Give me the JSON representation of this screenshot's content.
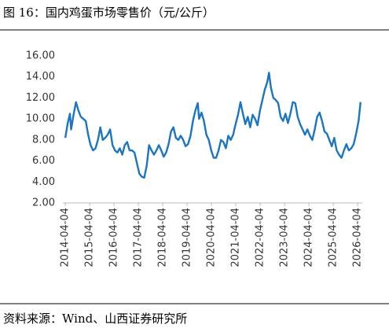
{
  "chart_data": {
    "type": "line",
    "title": "图 16：国内鸡蛋市场零售价（元/公斤）",
    "source": "资料来源：Wind、山西证券研究所",
    "series": [
      {
        "color": "#1b75c0",
        "x": [
          2014.26,
          2014.35,
          2014.45,
          2014.5,
          2014.6,
          2014.7,
          2014.8,
          2014.9,
          2015.0,
          2015.1,
          2015.2,
          2015.3,
          2015.4,
          2015.5,
          2015.6,
          2015.7,
          2015.8,
          2015.9,
          2016.0,
          2016.1,
          2016.2,
          2016.3,
          2016.4,
          2016.5,
          2016.6,
          2016.7,
          2016.8,
          2016.9,
          2017.0,
          2017.1,
          2017.2,
          2017.3,
          2017.4,
          2017.5,
          2017.6,
          2017.7,
          2017.8,
          2017.9,
          2018.0,
          2018.1,
          2018.2,
          2018.3,
          2018.4,
          2018.5,
          2018.6,
          2018.7,
          2018.8,
          2018.9,
          2019.0,
          2019.1,
          2019.2,
          2019.3,
          2019.4,
          2019.5,
          2019.6,
          2019.7,
          2019.75,
          2019.85,
          2019.95,
          2020.05,
          2020.15,
          2020.25,
          2020.35,
          2020.45,
          2020.55,
          2020.65,
          2020.75,
          2020.85,
          2020.95,
          2021.05,
          2021.15,
          2021.25,
          2021.35,
          2021.45,
          2021.55,
          2021.65,
          2021.75,
          2021.85,
          2021.95,
          2022.05,
          2022.15,
          2022.25,
          2022.35,
          2022.45,
          2022.55,
          2022.62,
          2022.7,
          2022.8,
          2022.9,
          2023.0,
          2023.1,
          2023.2,
          2023.3,
          2023.4,
          2023.5,
          2023.6,
          2023.7,
          2023.8,
          2023.9,
          2024.0,
          2024.1,
          2024.2,
          2024.3,
          2024.4,
          2024.5,
          2024.6,
          2024.7,
          2024.8,
          2024.9,
          2025.0,
          2025.1,
          2025.2,
          2025.3,
          2025.4,
          2025.5,
          2025.6,
          2025.7,
          2025.8,
          2025.9,
          2026.0,
          2026.1,
          2026.2,
          2026.3,
          2026.38
        ],
        "values": [
          8.2,
          9.5,
          10.5,
          9.0,
          10.4,
          11.6,
          10.8,
          10.2,
          10.0,
          9.8,
          8.5,
          7.5,
          7.0,
          7.2,
          8.0,
          9.2,
          8.0,
          8.2,
          8.5,
          9.0,
          7.5,
          7.0,
          6.8,
          7.2,
          6.6,
          7.5,
          7.8,
          7.0,
          7.0,
          6.8,
          5.8,
          4.8,
          4.5,
          4.4,
          5.5,
          7.5,
          7.0,
          6.6,
          7.0,
          7.5,
          7.0,
          6.4,
          6.8,
          7.6,
          8.8,
          9.2,
          8.2,
          8.0,
          8.4,
          8.0,
          7.4,
          7.6,
          8.4,
          9.8,
          10.8,
          11.5,
          10.0,
          10.6,
          9.8,
          8.5,
          8.0,
          7.0,
          6.3,
          6.3,
          7.0,
          8.0,
          7.8,
          7.2,
          8.4,
          8.0,
          8.5,
          9.5,
          10.4,
          11.6,
          10.5,
          9.5,
          10.2,
          9.2,
          10.4,
          10.0,
          9.4,
          10.8,
          11.8,
          12.8,
          13.5,
          14.4,
          13.0,
          12.0,
          11.8,
          11.5,
          10.2,
          9.8,
          10.5,
          9.6,
          10.5,
          11.6,
          11.5,
          10.2,
          9.5,
          9.0,
          8.5,
          9.0,
          8.4,
          8.0,
          9.0,
          10.2,
          10.6,
          9.8,
          8.8,
          8.6,
          8.0,
          7.4,
          8.2,
          7.0,
          6.6,
          6.3,
          7.0,
          7.6,
          7.0,
          7.2,
          7.6,
          8.6,
          9.8,
          11.6
        ]
      }
    ],
    "xlim": [
      2014.16,
      2026.45
    ],
    "xticks": [
      {
        "value": 2014.26,
        "label": "2014-04-04"
      },
      {
        "value": 2015.26,
        "label": "2015-04-04"
      },
      {
        "value": 2016.26,
        "label": "2016-04-04"
      },
      {
        "value": 2017.26,
        "label": "2017-04-04"
      },
      {
        "value": 2018.26,
        "label": "2018-04-04"
      },
      {
        "value": 2019.26,
        "label": "2019-04-04"
      },
      {
        "value": 2020.26,
        "label": "2020-04-04"
      },
      {
        "value": 2021.26,
        "label": "2021-04-04"
      },
      {
        "value": 2022.26,
        "label": "2022-04-04"
      },
      {
        "value": 2023.26,
        "label": "2023-04-04"
      },
      {
        "value": 2024.26,
        "label": "2024-04-04"
      },
      {
        "value": 2025.26,
        "label": "2025-04-04"
      },
      {
        "value": 2026.26,
        "label": "2026-04-04"
      }
    ],
    "ylim": [
      2,
      16
    ],
    "yticks": [
      {
        "value": 2,
        "label": "2.00"
      },
      {
        "value": 4,
        "label": "4.00"
      },
      {
        "value": 6,
        "label": "6.00"
      },
      {
        "value": 8,
        "label": "8.00"
      },
      {
        "value": 10,
        "label": "10.00"
      },
      {
        "value": 12,
        "label": "12.00"
      },
      {
        "value": 14,
        "label": "14.00"
      },
      {
        "value": 16,
        "label": "16.00"
      }
    ]
  }
}
